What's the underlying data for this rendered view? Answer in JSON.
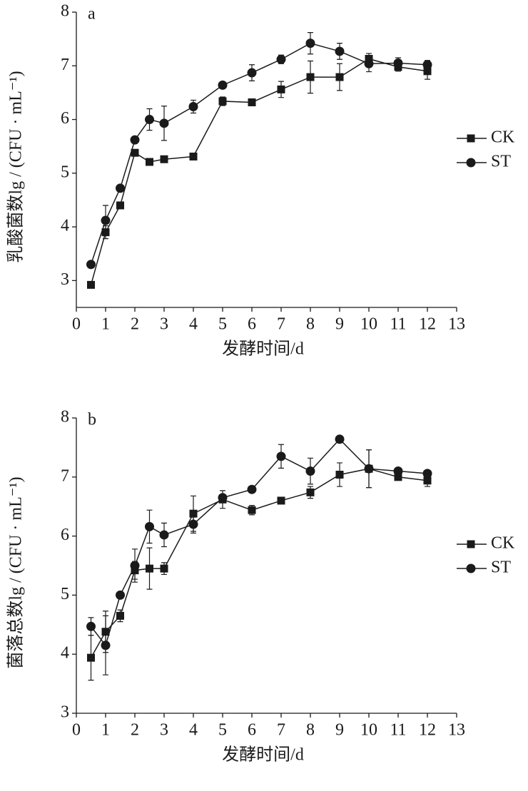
{
  "chart_data": [
    {
      "type": "line",
      "panel_label": "a",
      "xlabel": "发酵时间/d",
      "ylabel": "乳酸菌数lg / (CFU · mL⁻¹)",
      "x": [
        0.5,
        1,
        1.5,
        2,
        2.5,
        3,
        4,
        5,
        6,
        7,
        8,
        9,
        10,
        11,
        12
      ],
      "series": [
        {
          "name": "CK",
          "color": "#1a1a1a",
          "marker": "square",
          "values": [
            2.92,
            3.9,
            4.4,
            5.38,
            5.21,
            5.26,
            5.31,
            6.34,
            6.32,
            6.56,
            6.79,
            6.79,
            7.13,
            6.98,
            6.9
          ],
          "errors": [
            0,
            0.12,
            0,
            0,
            0,
            0,
            0,
            0.08,
            0.06,
            0.15,
            0.3,
            0.25,
            0.1,
            0.08,
            0.15
          ]
        },
        {
          "name": "ST",
          "color": "#1a1a1a",
          "marker": "circle",
          "values": [
            3.3,
            4.12,
            4.72,
            5.62,
            6.0,
            5.93,
            6.24,
            6.64,
            6.87,
            7.12,
            7.42,
            7.27,
            7.04,
            7.05,
            7.02
          ],
          "errors": [
            0,
            0.28,
            0,
            0,
            0.2,
            0.32,
            0.12,
            0,
            0.15,
            0.08,
            0.2,
            0.15,
            0.15,
            0.1,
            0.08
          ]
        }
      ],
      "xlim": [
        0,
        13
      ],
      "xticks": [
        0,
        1,
        2,
        3,
        4,
        5,
        6,
        7,
        8,
        9,
        10,
        11,
        12,
        13
      ],
      "ylim": [
        2.5,
        8
      ],
      "yticks": [
        3,
        4,
        5,
        6,
        7,
        8
      ],
      "legend": "right"
    },
    {
      "type": "line",
      "panel_label": "b",
      "xlabel": "发酵时间/d",
      "ylabel": "菌落总数lg / (CFU · mL⁻¹)",
      "x": [
        0.5,
        1,
        1.5,
        2,
        2.5,
        3,
        4,
        5,
        6,
        7,
        8,
        9,
        10,
        11,
        12
      ],
      "series": [
        {
          "name": "CK",
          "color": "#1a1a1a",
          "marker": "square",
          "values": [
            3.94,
            4.38,
            4.65,
            5.42,
            5.45,
            5.45,
            6.38,
            6.62,
            6.44,
            6.6,
            6.74,
            7.04,
            7.14,
            7.0,
            6.94
          ],
          "errors": [
            0.38,
            0.35,
            0.1,
            0.15,
            0.35,
            0.1,
            0.3,
            0.15,
            0.08,
            0.02,
            0.1,
            0.2,
            0.32,
            0.05,
            0.1
          ]
        },
        {
          "name": "ST",
          "color": "#1a1a1a",
          "marker": "circle",
          "values": [
            4.47,
            4.15,
            5.0,
            5.5,
            6.16,
            6.02,
            6.2,
            6.65,
            6.79,
            7.35,
            7.1,
            7.64,
            7.14,
            7.1,
            7.06
          ],
          "errors": [
            0.15,
            0.5,
            0,
            0.28,
            0.28,
            0.2,
            0.15,
            0.05,
            0,
            0.2,
            0.22,
            0,
            0.32,
            0.05,
            0.03
          ]
        }
      ],
      "xlim": [
        0,
        13
      ],
      "xticks": [
        0,
        1,
        2,
        3,
        4,
        5,
        6,
        7,
        8,
        9,
        10,
        11,
        12,
        13
      ],
      "ylim": [
        3,
        8
      ],
      "yticks": [
        3,
        4,
        5,
        6,
        7,
        8
      ],
      "legend": "right"
    }
  ]
}
